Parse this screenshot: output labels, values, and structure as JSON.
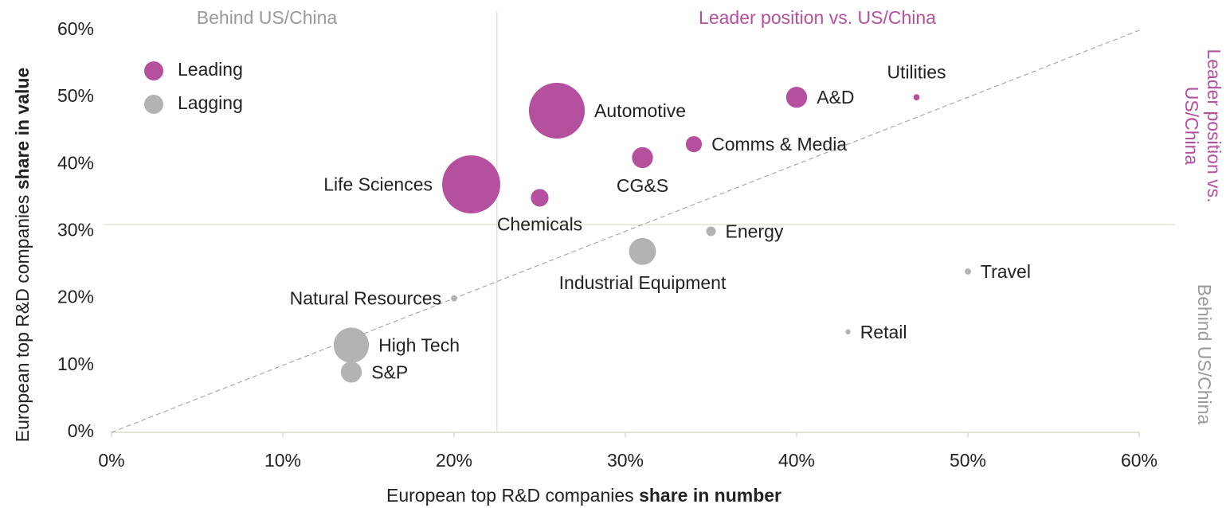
{
  "chart_data": {
    "type": "bubble",
    "xlabel": "European top R&D companies",
    "xlabel_bold": "share in number",
    "ylabel": "European top R&D companies",
    "ylabel_bold": "share in value",
    "xlim": [
      0,
      60
    ],
    "ylim": [
      0,
      60
    ],
    "xticks": [
      {
        "value": 0,
        "label": "0%"
      },
      {
        "value": 10,
        "label": "10%"
      },
      {
        "value": 20,
        "label": "20%"
      },
      {
        "value": 30,
        "label": "30%"
      },
      {
        "value": 40,
        "label": "40%"
      },
      {
        "value": 50,
        "label": "50%"
      },
      {
        "value": 60,
        "label": "60%"
      }
    ],
    "yticks": [
      {
        "value": 0,
        "label": "0%"
      },
      {
        "value": 10,
        "label": "10%"
      },
      {
        "value": 20,
        "label": "20%"
      },
      {
        "value": 30,
        "label": "30%"
      },
      {
        "value": 40,
        "label": "40%"
      },
      {
        "value": 50,
        "label": "50%"
      },
      {
        "value": 60,
        "label": "60%"
      }
    ],
    "quadrant_lines": {
      "x": 22.5,
      "y": 31
    },
    "diagonal": true,
    "annotations": {
      "top_left": "Behind US/China",
      "top_right": "Leader position vs. US/China",
      "right_top": [
        "Leader position vs.",
        "US/China"
      ],
      "right_bottom": "Behind US/China"
    },
    "series": [
      {
        "name": "Leading",
        "color": "#b5509f",
        "points": [
          {
            "label": "Automotive",
            "x": 26,
            "y": 48,
            "size": 120
          },
          {
            "label": "Life Sciences",
            "x": 21,
            "y": 37,
            "size": 130
          },
          {
            "label": "A&D",
            "x": 40,
            "y": 50,
            "size": 17
          },
          {
            "label": "Utilities",
            "x": 47,
            "y": 50,
            "size": 1.5
          },
          {
            "label": "Comms & Media",
            "x": 34,
            "y": 43,
            "size": 10
          },
          {
            "label": "CG&S",
            "x": 31,
            "y": 41,
            "size": 17
          },
          {
            "label": "Chemicals",
            "x": 25,
            "y": 35,
            "size": 12
          }
        ]
      },
      {
        "name": "Lagging",
        "color": "#b3b3b3",
        "points": [
          {
            "label": "Energy",
            "x": 35,
            "y": 30,
            "size": 3.5
          },
          {
            "label": "Industrial Equipment",
            "x": 31,
            "y": 27,
            "size": 28
          },
          {
            "label": "Travel",
            "x": 50,
            "y": 24,
            "size": 1.5
          },
          {
            "label": "Natural Resources",
            "x": 20,
            "y": 20,
            "size": 1.5
          },
          {
            "label": "Retail",
            "x": 43,
            "y": 15,
            "size": 1
          },
          {
            "label": "High Tech",
            "x": 14,
            "y": 13,
            "size": 48
          },
          {
            "label": "S&P",
            "x": 14,
            "y": 9,
            "size": 17
          }
        ]
      }
    ]
  }
}
